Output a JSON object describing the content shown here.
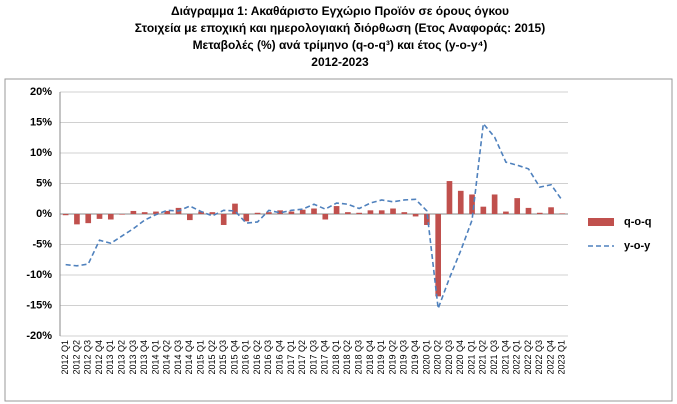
{
  "chart_data": {
    "type": "bar",
    "title": [
      "Διάγραμμα 1: Ακαθάριστο Εγχώριο Προϊόν σε όρους όγκου",
      "Στοιχεία με εποχική και ημερολογιακή διόρθωση (Ετος Αναφοράς: 2015)",
      "Μεταβολές (%) ανά τρίμηνο (q-o-q³) και έτος (y-o-y⁴)",
      "2012-2023"
    ],
    "categories": [
      "2012 Q1",
      "2012 Q2",
      "2012 Q3",
      "2012 Q4",
      "2013 Q1",
      "2013 Q2",
      "2013 Q3",
      "2013 Q4",
      "2014 Q1",
      "2014 Q2",
      "2014 Q3",
      "2014 Q4",
      "2015 Q1",
      "2015 Q2",
      "2015 Q3",
      "2015 Q4",
      "2016 Q1",
      "2016 Q2",
      "2016 Q3",
      "2016 Q4",
      "2017 Q1",
      "2017 Q2",
      "2017 Q3",
      "2017 Q4",
      "2018 Q1",
      "2018 Q2",
      "2018 Q3",
      "2018 Q4",
      "2019 Q1",
      "2019 Q2",
      "2019 Q3",
      "2019 Q4",
      "2020 Q1",
      "2020 Q2",
      "2020 Q3",
      "2020 Q4",
      "2021 Q1",
      "2021 Q2",
      "2021 Q3",
      "2021 Q4",
      "2022 Q1",
      "2022 Q2",
      "2022 Q3",
      "2022 Q4",
      "2023 Q1"
    ],
    "series": [
      {
        "name": "q-o-q",
        "type": "bar",
        "color": "#c0504d",
        "values": [
          -0.2,
          -1.7,
          -1.5,
          -0.8,
          -0.9,
          -0.1,
          0.5,
          0.3,
          0.4,
          0.5,
          1.0,
          -1.0,
          0.4,
          0.3,
          -1.8,
          1.7,
          -1.2,
          0.2,
          0.3,
          0.6,
          0.4,
          0.7,
          0.9,
          -0.9,
          1.3,
          0.3,
          0.2,
          0.6,
          0.6,
          0.9,
          0.3,
          -0.4,
          -1.8,
          -13.5,
          5.4,
          3.8,
          3.2,
          1.2,
          3.2,
          0.4,
          2.6,
          1.0,
          0.2,
          1.1,
          0.1
        ]
      },
      {
        "name": "y-o-y",
        "type": "line",
        "color": "#4f81bd",
        "values": [
          -8.3,
          -8.5,
          -8.2,
          -4.3,
          -4.8,
          -3.6,
          -2.4,
          -1.0,
          -0.1,
          0.6,
          0.5,
          1.3,
          0.4,
          -0.3,
          0.6,
          0.5,
          -1.5,
          -1.3,
          0.6,
          0.2,
          0.6,
          0.8,
          1.6,
          0.8,
          1.8,
          1.6,
          0.9,
          1.8,
          2.3,
          2.0,
          2.3,
          2.4,
          0.5,
          -15.5,
          -10.5,
          -6.0,
          -1.0,
          14.8,
          12.6,
          8.5,
          8.0,
          7.4,
          4.4,
          4.8,
          2.2
        ]
      }
    ],
    "ylim": [
      -20,
      20
    ],
    "yticks": [
      {
        "value": -20,
        "label": "-20%"
      },
      {
        "value": -15,
        "label": "-15%"
      },
      {
        "value": -10,
        "label": "-10%"
      },
      {
        "value": -5,
        "label": "-5%"
      },
      {
        "value": 0,
        "label": "0%"
      },
      {
        "value": 5,
        "label": "5%"
      },
      {
        "value": 10,
        "label": "10%"
      },
      {
        "value": 15,
        "label": "15%"
      },
      {
        "value": 20,
        "label": "20%"
      }
    ],
    "grid": true,
    "legend": "right"
  }
}
